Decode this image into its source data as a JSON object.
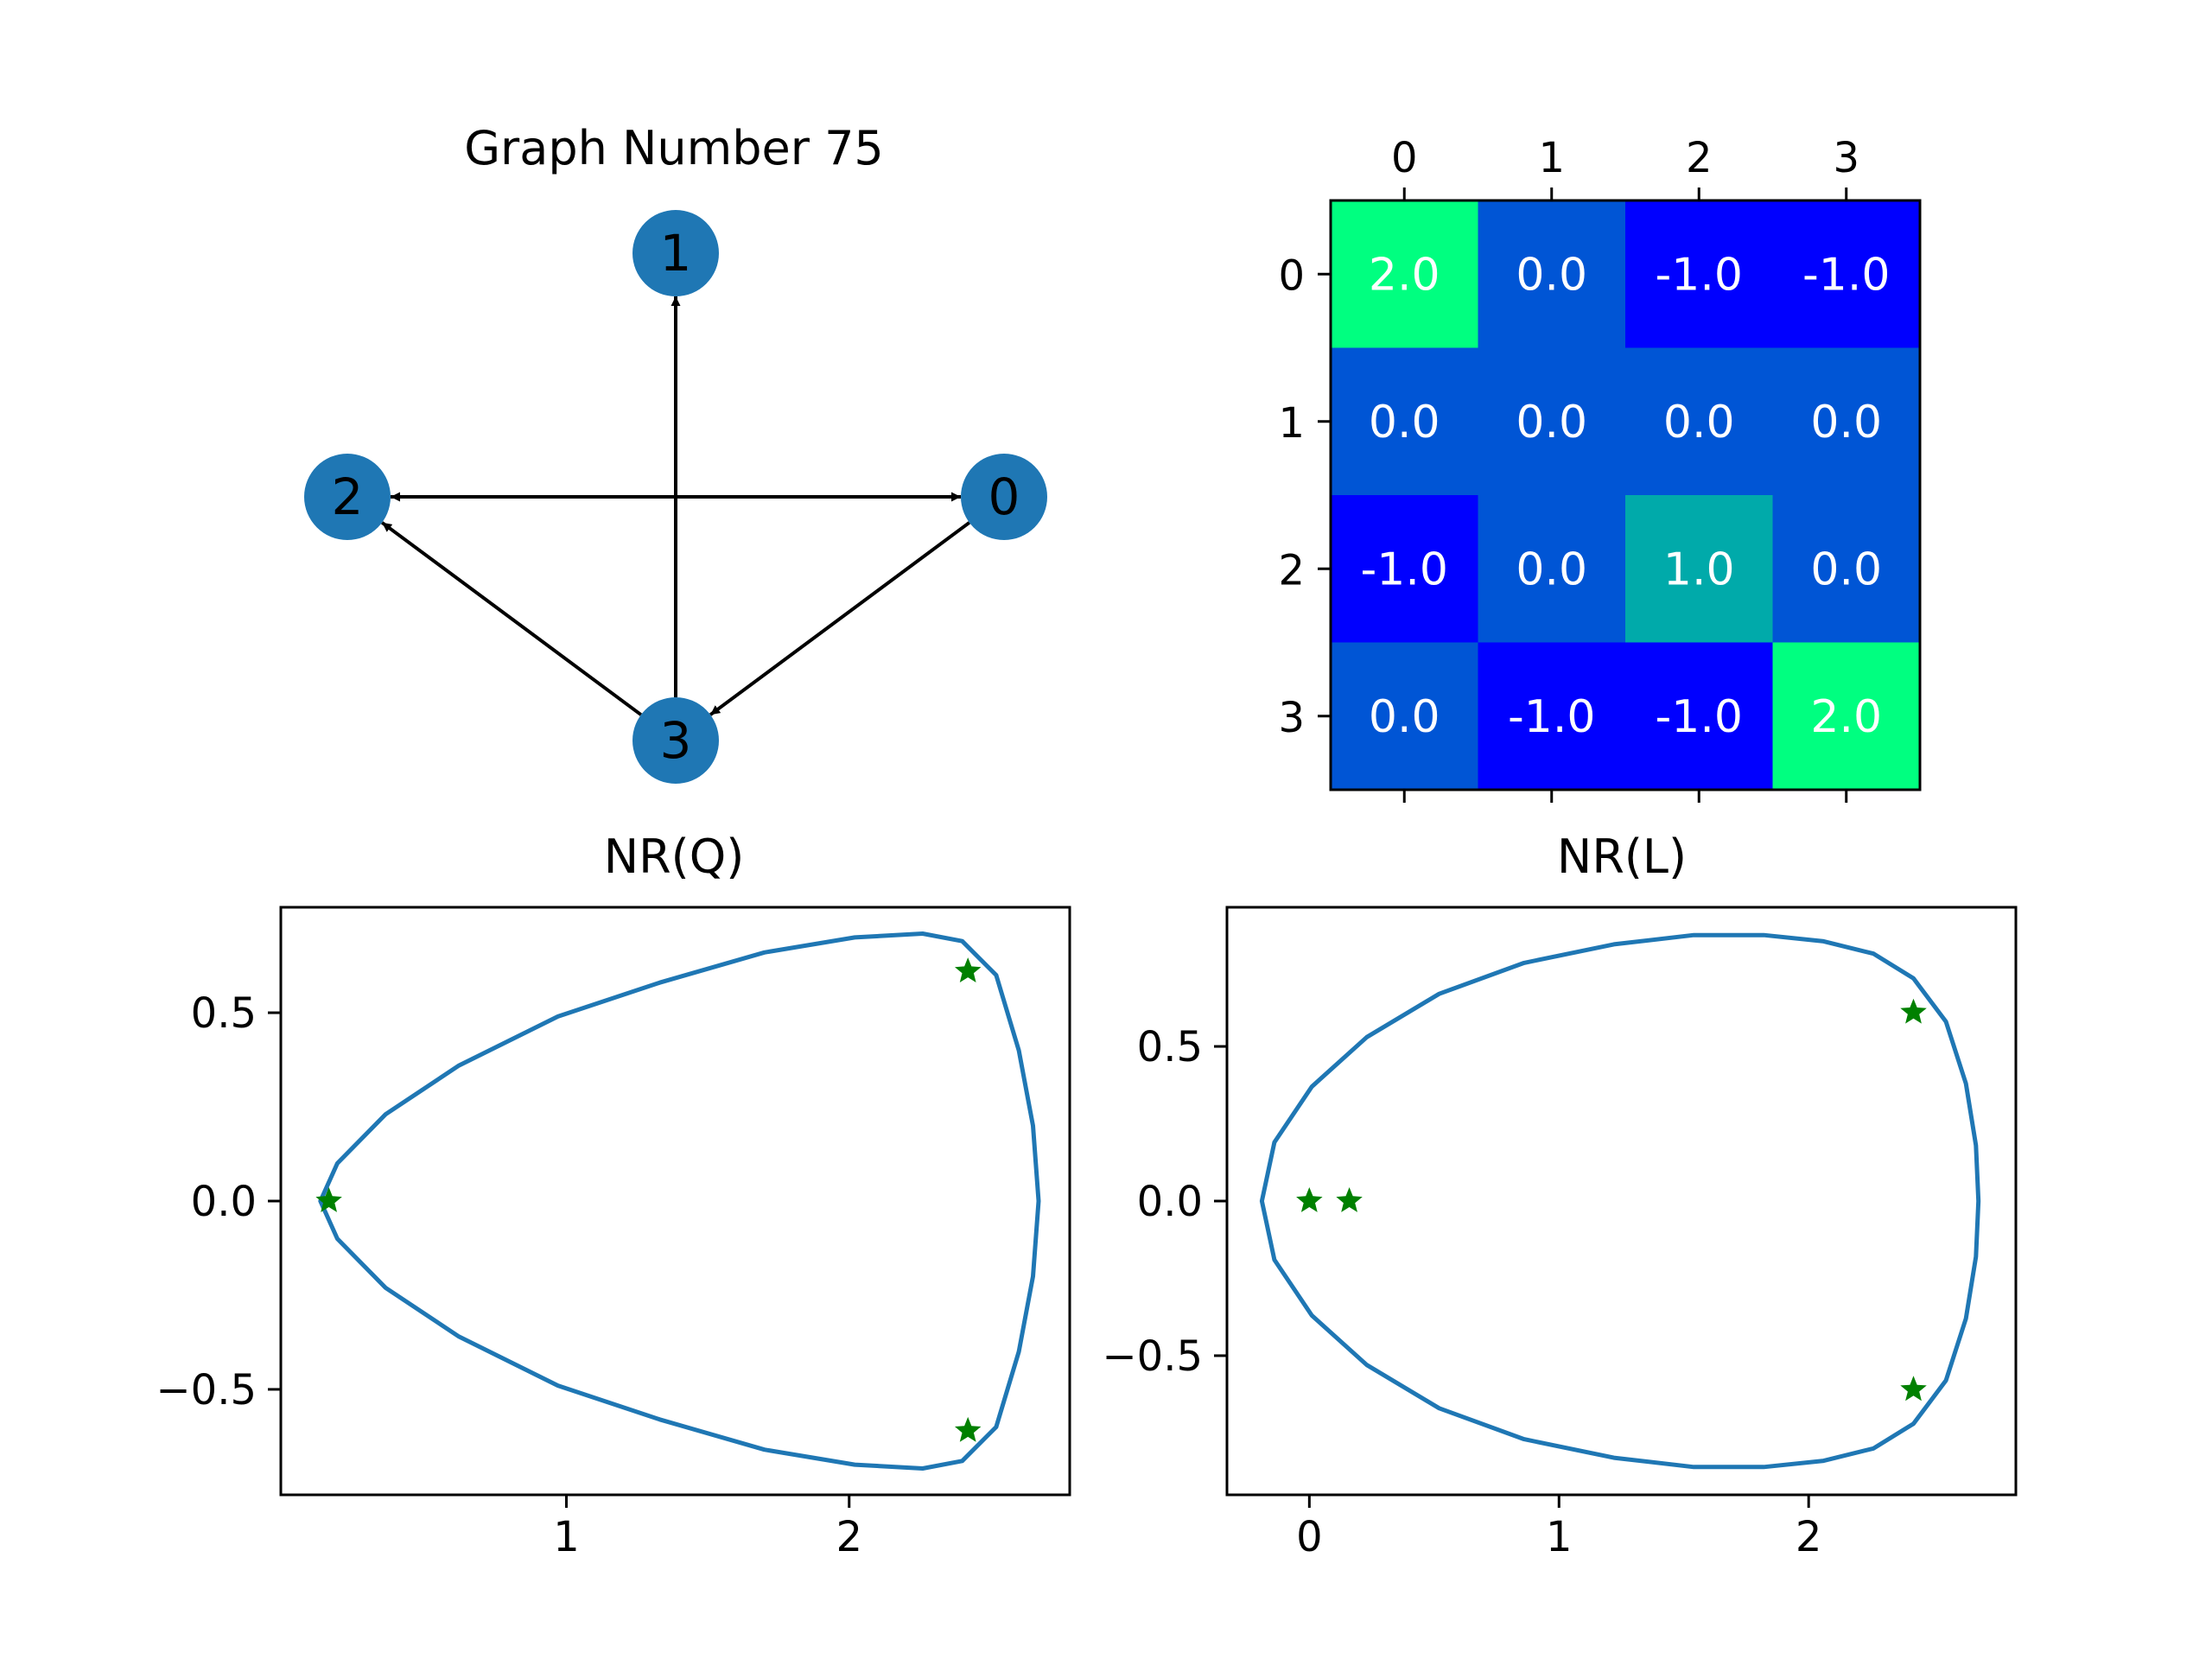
{
  "chart_data": [
    {
      "type": "graph",
      "title": "Graph Number 75",
      "nodes": [
        {
          "id": "0"
        },
        {
          "id": "1"
        },
        {
          "id": "2"
        },
        {
          "id": "3"
        }
      ],
      "edges": [
        {
          "from": "0",
          "to": "2"
        },
        {
          "from": "2",
          "to": "0"
        },
        {
          "from": "0",
          "to": "3"
        },
        {
          "from": "3",
          "to": "1"
        },
        {
          "from": "3",
          "to": "2"
        }
      ],
      "node_color": "#1f77b4"
    },
    {
      "type": "heatmap",
      "title": "",
      "row_labels": [
        "0",
        "1",
        "2",
        "3"
      ],
      "col_labels": [
        "0",
        "1",
        "2",
        "3"
      ],
      "values": [
        [
          2.0,
          0.0,
          -1.0,
          -1.0
        ],
        [
          0.0,
          0.0,
          0.0,
          0.0
        ],
        [
          -1.0,
          0.0,
          1.0,
          0.0
        ],
        [
          0.0,
          -1.0,
          -1.0,
          2.0
        ]
      ],
      "cell_text": [
        [
          "2.0",
          "0.0",
          "-1.0",
          "-1.0"
        ],
        [
          "0.0",
          "0.0",
          "0.0",
          "0.0"
        ],
        [
          "-1.0",
          "0.0",
          "1.0",
          "0.0"
        ],
        [
          "0.0",
          "-1.0",
          "-1.0",
          "2.0"
        ]
      ],
      "colormap": "winter",
      "xaxis_position": "top"
    },
    {
      "type": "line",
      "title": "NR(Q)",
      "xlim": [
        -0.01,
        2.78
      ],
      "ylim": [
        -0.78,
        0.78
      ],
      "xticks": [
        1,
        2
      ],
      "xtick_labels": [
        "1",
        "2"
      ],
      "yticks": [
        -0.5,
        0.0,
        0.5
      ],
      "ytick_labels": [
        "−0.5",
        "0.0",
        "0.5"
      ],
      "boundary": {
        "x": [
          0.13,
          0.19,
          0.36,
          0.62,
          0.97,
          1.33,
          1.7,
          2.02,
          2.26,
          2.4,
          2.52,
          2.6,
          2.65,
          2.67
        ],
        "y": [
          0.0,
          0.1,
          0.23,
          0.36,
          0.49,
          0.58,
          0.66,
          0.7,
          0.71,
          0.69,
          0.6,
          0.4,
          0.2,
          0.0
        ]
      },
      "eigenvalues": {
        "x": [
          0.16,
          2.42,
          2.42
        ],
        "y": [
          0.0,
          0.61,
          -0.61
        ]
      },
      "line_color": "#1f77b4",
      "marker_color": "#008000"
    },
    {
      "type": "line",
      "title": "NR(L)",
      "xlim": [
        -0.33,
        2.83
      ],
      "ylim": [
        -0.95,
        0.95
      ],
      "xticks": [
        0,
        1,
        2
      ],
      "xtick_labels": [
        "0",
        "1",
        "2"
      ],
      "yticks": [
        -0.5,
        0.0,
        0.5
      ],
      "ytick_labels": [
        "−0.5",
        "0.0",
        "0.5"
      ],
      "boundary": {
        "x": [
          -0.19,
          -0.14,
          0.01,
          0.23,
          0.52,
          0.86,
          1.22,
          1.54,
          1.82,
          2.06,
          2.26,
          2.42,
          2.55,
          2.63,
          2.67,
          2.68
        ],
        "y": [
          0.0,
          0.19,
          0.37,
          0.53,
          0.67,
          0.77,
          0.83,
          0.86,
          0.86,
          0.84,
          0.8,
          0.72,
          0.58,
          0.38,
          0.18,
          0.0
        ]
      },
      "eigenvalues": {
        "x": [
          0.0,
          0.16,
          2.42,
          2.42
        ],
        "y": [
          0.0,
          0.0,
          0.61,
          -0.61
        ]
      },
      "line_color": "#1f77b4",
      "marker_color": "#008000"
    }
  ]
}
